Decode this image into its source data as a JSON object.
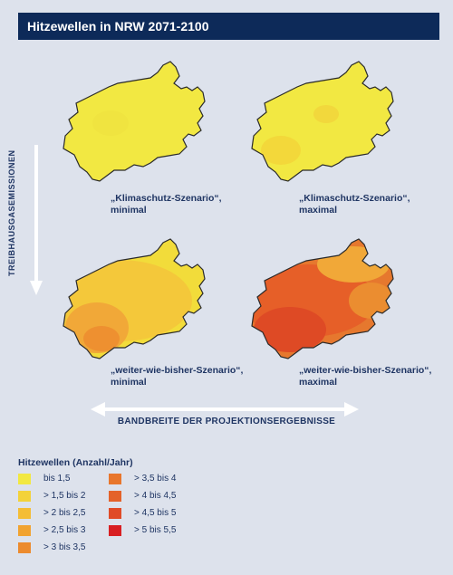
{
  "title": "Hitzewellen in NRW 2071-2100",
  "axis": {
    "vertical": "TREIBHAUSGASEMISSIONEN",
    "horizontal": "BANDBREITE DER PROJEKTIONSERGEBNISSE"
  },
  "maps": [
    {
      "caption_line1": "„Klimaschutz-Szenario“,",
      "caption_line2": "minimal",
      "base_color": "#f2e842",
      "blob_colors": [
        "#f0e440"
      ]
    },
    {
      "caption_line1": "„Klimaschutz-Szenario“,",
      "caption_line2": "maximal",
      "base_color": "#f2e842",
      "blob_colors": [
        "#f3d83a",
        "#f2d83c"
      ]
    },
    {
      "caption_line1": "„weiter-wie-bisher-Szenario“,",
      "caption_line2": "minimal",
      "base_color": "#f2dc3a",
      "blob_colors": [
        "#f4c83a",
        "#f1a838",
        "#ee9030"
      ]
    },
    {
      "caption_line1": "„weiter-wie-bisher-Szenario“,",
      "caption_line2": "maximal",
      "base_color": "#e6782e",
      "blob_colors": [
        "#e65f28",
        "#de4a25",
        "#f1a838",
        "#eb8d30"
      ]
    }
  ],
  "legend": {
    "title": "Hitzewellen (Anzahl/Jahr)",
    "items": [
      {
        "label": "bis 1,5",
        "color": "#f2e842"
      },
      {
        "label": "> 1,5 bis 2",
        "color": "#f3d23a"
      },
      {
        "label": "> 2 bis 2,5",
        "color": "#f4bd35"
      },
      {
        "label": "> 2,5 bis 3",
        "color": "#f1a330"
      },
      {
        "label": "> 3 bis 3,5",
        "color": "#ec8b2e"
      },
      {
        "label": "> 3,5 bis 4",
        "color": "#e8762c"
      },
      {
        "label": "> 4 bis 4,5",
        "color": "#e4622a"
      },
      {
        "label": "> 4,5 bis 5",
        "color": "#e04b27"
      },
      {
        "label": "> 5 bis 5,5",
        "color": "#d81f22"
      }
    ]
  }
}
